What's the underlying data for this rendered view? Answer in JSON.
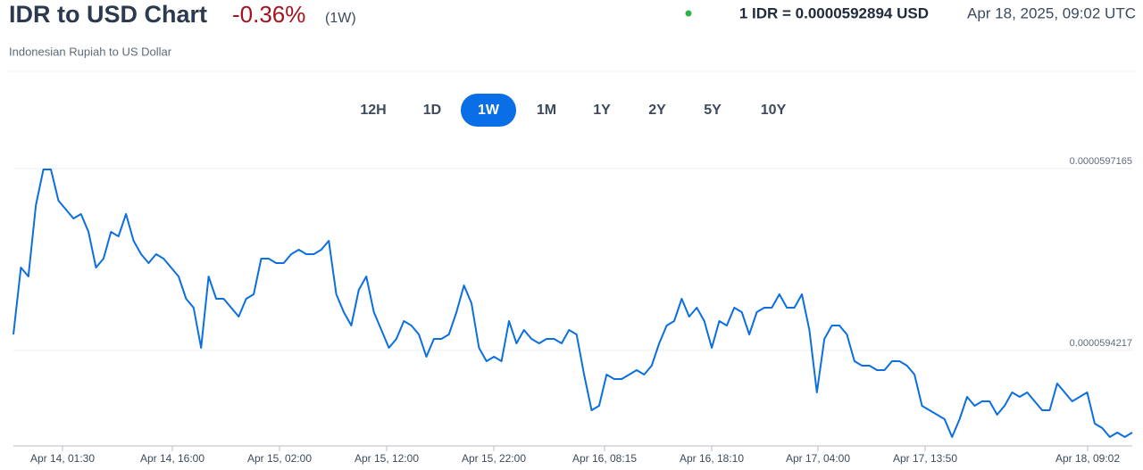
{
  "header": {
    "title": "IDR to USD Chart",
    "change": "-0.36%",
    "period": "(1W)",
    "rate": "1 IDR = 0.0000592894 USD",
    "timestamp": "Apr 18, 2025, 09:02 UTC",
    "subtitle": "Indonesian Rupiah to US Dollar"
  },
  "periods": [
    "12H",
    "1D",
    "1W",
    "1M",
    "1Y",
    "2Y",
    "5Y",
    "10Y"
  ],
  "chart_data": {
    "type": "line",
    "color": "#0b6fe0",
    "ylim": [
      5.92671e-05,
      5.97281e-05
    ],
    "yticks": [
      5.97165e-05,
      5.94217e-05
    ],
    "grid": true,
    "xtick_labels": [
      "Apr 14, 01:30",
      "Apr 14, 16:00",
      "Apr 15, 02:00",
      "Apr 15, 12:00",
      "Apr 15, 22:00",
      "Apr 16, 08:15",
      "Apr 16, 18:10",
      "Apr 17, 04:00",
      "Apr 17, 13:50",
      "Apr 18, 09:02"
    ],
    "values": [
      5.94477e-05,
      5.95561e-05,
      5.95417e-05,
      5.96573e-05,
      5.97151e-05,
      5.97151e-05,
      5.96645e-05,
      5.965e-05,
      5.96356e-05,
      5.96428e-05,
      5.96139e-05,
      5.95561e-05,
      5.95706e-05,
      5.96139e-05,
      5.96067e-05,
      5.96428e-05,
      5.95995e-05,
      5.95778e-05,
      5.95633e-05,
      5.95778e-05,
      5.95706e-05,
      5.95561e-05,
      5.95417e-05,
      5.95055e-05,
      5.94911e-05,
      5.94261e-05,
      5.95417e-05,
      5.95055e-05,
      5.95055e-05,
      5.94911e-05,
      5.94766e-05,
      5.95055e-05,
      5.95128e-05,
      5.95706e-05,
      5.95706e-05,
      5.95633e-05,
      5.95633e-05,
      5.95778e-05,
      5.9585e-05,
      5.95778e-05,
      5.95778e-05,
      5.9585e-05,
      5.95995e-05,
      5.95128e-05,
      5.94839e-05,
      5.94622e-05,
      5.952e-05,
      5.95417e-05,
      5.94839e-05,
      5.9455e-05,
      5.94261e-05,
      5.94405e-05,
      5.94694e-05,
      5.94622e-05,
      5.94477e-05,
      5.94116e-05,
      5.94405e-05,
      5.94405e-05,
      5.94477e-05,
      5.94839e-05,
      5.95272e-05,
      5.94983e-05,
      5.94261e-05,
      5.94044e-05,
      5.94116e-05,
      5.94044e-05,
      5.94694e-05,
      5.94333e-05,
      5.9455e-05,
      5.94405e-05,
      5.94333e-05,
      5.94405e-05,
      5.94405e-05,
      5.94333e-05,
      5.9455e-05,
      5.94477e-05,
      5.93827e-05,
      5.93249e-05,
      5.93321e-05,
      5.93827e-05,
      5.93755e-05,
      5.93755e-05,
      5.93827e-05,
      5.93899e-05,
      5.93827e-05,
      5.93972e-05,
      5.94333e-05,
      5.94622e-05,
      5.94694e-05,
      5.95055e-05,
      5.94766e-05,
      5.94911e-05,
      5.94694e-05,
      5.94261e-05,
      5.94694e-05,
      5.94622e-05,
      5.94911e-05,
      5.94839e-05,
      5.94477e-05,
      5.94839e-05,
      5.94911e-05,
      5.94911e-05,
      5.95128e-05,
      5.94911e-05,
      5.94911e-05,
      5.95128e-05,
      5.9455e-05,
      5.93538e-05,
      5.94405e-05,
      5.94622e-05,
      5.94622e-05,
      5.94477e-05,
      5.94044e-05,
      5.93972e-05,
      5.93972e-05,
      5.93899e-05,
      5.93899e-05,
      5.94044e-05,
      5.94044e-05,
      5.93972e-05,
      5.93827e-05,
      5.93321e-05,
      5.93249e-05,
      5.93177e-05,
      5.93105e-05,
      5.92816e-05,
      5.93105e-05,
      5.93466e-05,
      5.93321e-05,
      5.93394e-05,
      5.93394e-05,
      5.93177e-05,
      5.93321e-05,
      5.93538e-05,
      5.93466e-05,
      5.93538e-05,
      5.93394e-05,
      5.93249e-05,
      5.93249e-05,
      5.93683e-05,
      5.93538e-05,
      5.93394e-05,
      5.93466e-05,
      5.93538e-05,
      5.93032e-05,
      5.9296e-05,
      5.92816e-05,
      5.92888e-05,
      5.92816e-05,
      5.92888e-05
    ]
  }
}
